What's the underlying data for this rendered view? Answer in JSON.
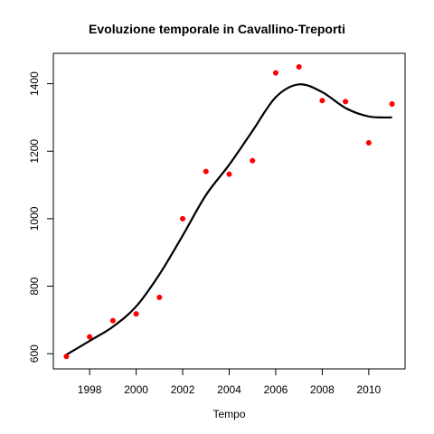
{
  "chart_data": {
    "type": "scatter",
    "title": "Evoluzione temporale in Cavallino-Treporti",
    "xlabel": "Tempo",
    "ylabel": "",
    "xlim": [
      1996.44,
      2011.56
    ],
    "ylim": [
      555,
      1490
    ],
    "x_ticks": [
      1998,
      2000,
      2002,
      2004,
      2006,
      2008,
      2010
    ],
    "y_ticks": [
      600,
      800,
      1000,
      1200,
      1400
    ],
    "grid": false,
    "legend": "none",
    "colors": {
      "points": "#ff0000",
      "curve": "#000000",
      "frame": "#000000"
    },
    "series": [
      {
        "kind": "points",
        "x": [
          1997,
          1998,
          1999,
          2000,
          2001,
          2002,
          2003,
          2004,
          2005,
          2006,
          2007,
          2008,
          2009,
          2010,
          2011
        ],
        "y": [
          592,
          650,
          698,
          718,
          767,
          1000,
          1140,
          1132,
          1172,
          1432,
          1450,
          1350,
          1347,
          1225,
          1340
        ]
      },
      {
        "kind": "smooth-line",
        "x": [
          1997,
          1998,
          1999,
          2000,
          2001,
          2002,
          2003,
          2004,
          2005,
          2006,
          2007,
          2008,
          2009,
          2010,
          2011
        ],
        "y": [
          597,
          638,
          680,
          740,
          835,
          950,
          1070,
          1160,
          1260,
          1360,
          1398,
          1375,
          1328,
          1303,
          1300
        ]
      }
    ]
  }
}
